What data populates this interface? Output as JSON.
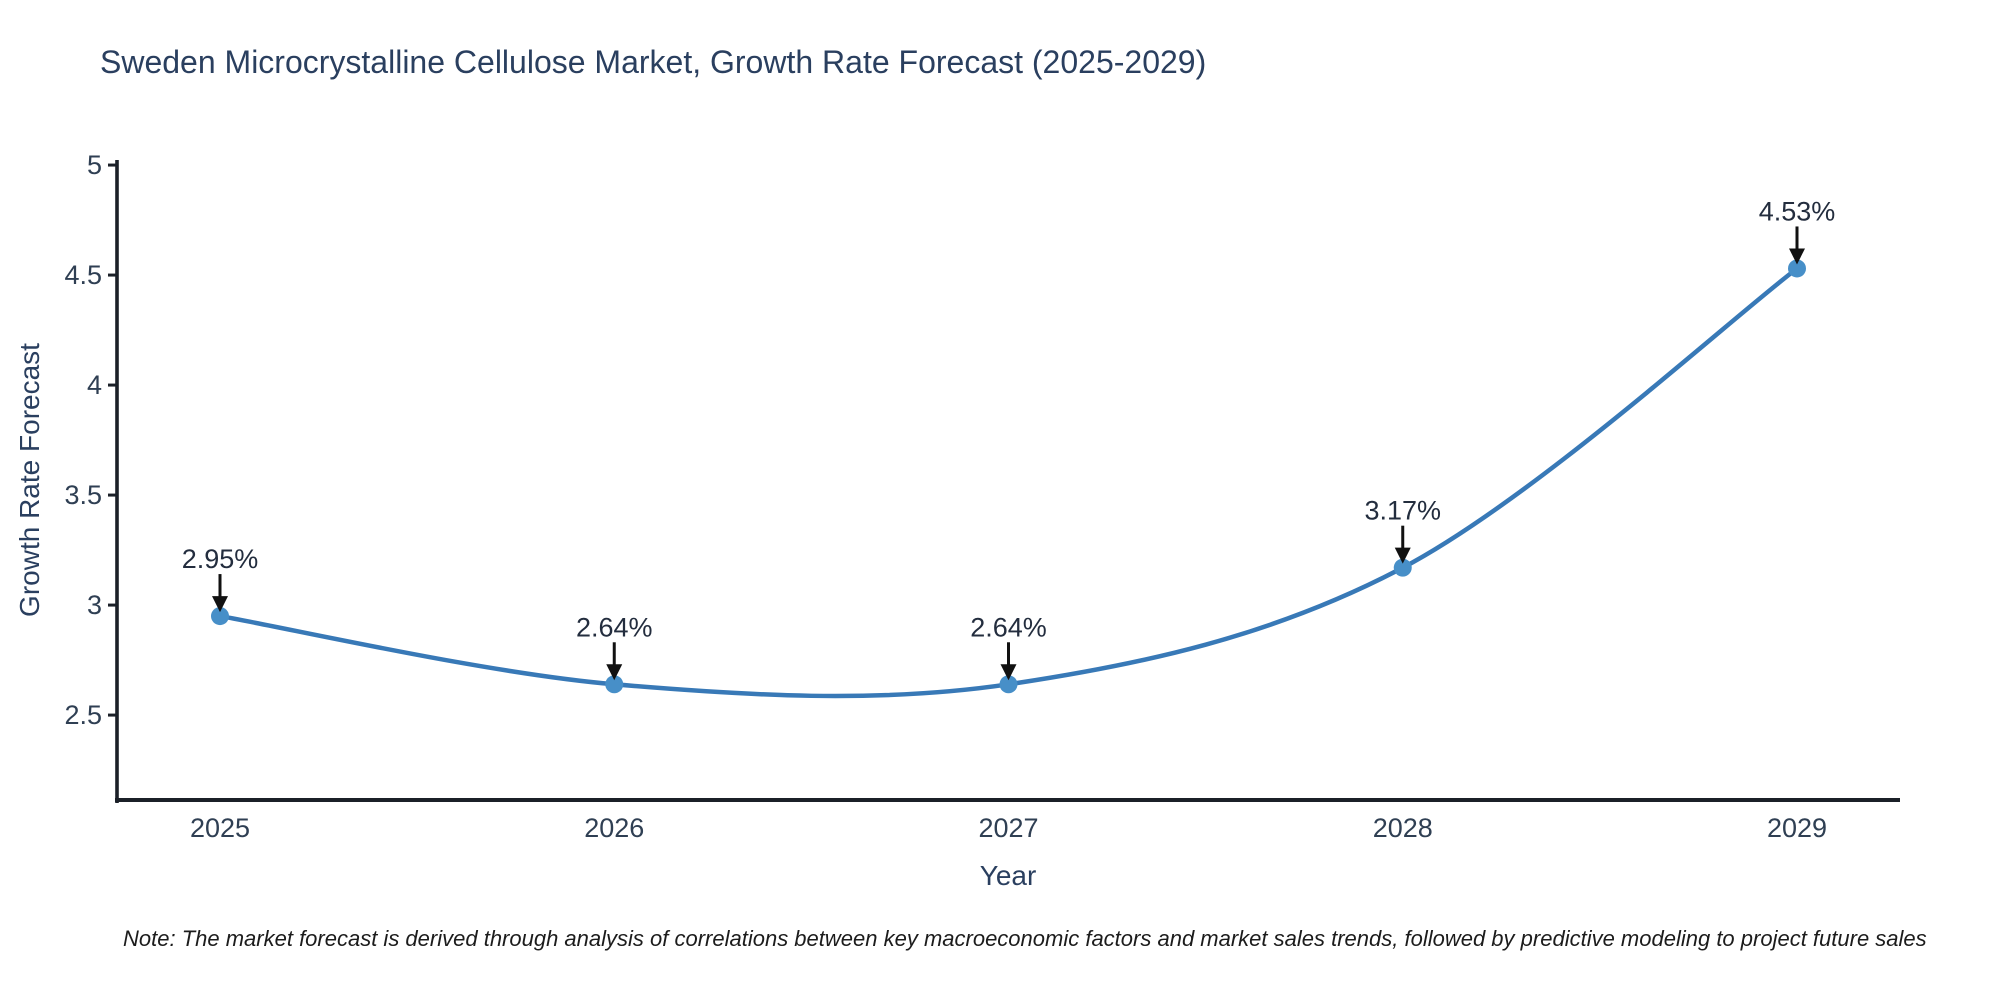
{
  "title": "Sweden Microcrystalline Cellulose Market, Growth Rate Forecast (2025-2029)",
  "note": "Note: The market forecast is derived through analysis of correlations between key macroeconomic factors and market sales trends, followed by predictive modeling to project future sales",
  "chart_data": {
    "type": "line",
    "title": "Sweden Microcrystalline Cellulose Market, Growth Rate Forecast (2025-2029)",
    "xlabel": "Year",
    "ylabel": "Growth Rate Forecast",
    "categories": [
      "2025",
      "2026",
      "2027",
      "2028",
      "2029"
    ],
    "series": [
      {
        "name": "Growth Rate Forecast",
        "values": [
          2.95,
          2.64,
          2.64,
          3.17,
          4.53
        ]
      }
    ],
    "point_labels": [
      "2.95%",
      "2.64%",
      "2.64%",
      "3.17%",
      "4.53%"
    ],
    "yticks": [
      2.5,
      3,
      3.5,
      4,
      4.5,
      5
    ],
    "ylim": [
      2.114,
      5.023
    ],
    "grid": false,
    "legend_position": "none",
    "line_shape": "spline",
    "colors": {
      "line": "#3879b7",
      "marker": "#478fc8",
      "axis": "#1b2028",
      "title": "#2a3f5f",
      "tick_label": "#2f3f53",
      "annotation_text": "#232d3e",
      "arrow": "#111111",
      "background": "#ffffff"
    }
  }
}
